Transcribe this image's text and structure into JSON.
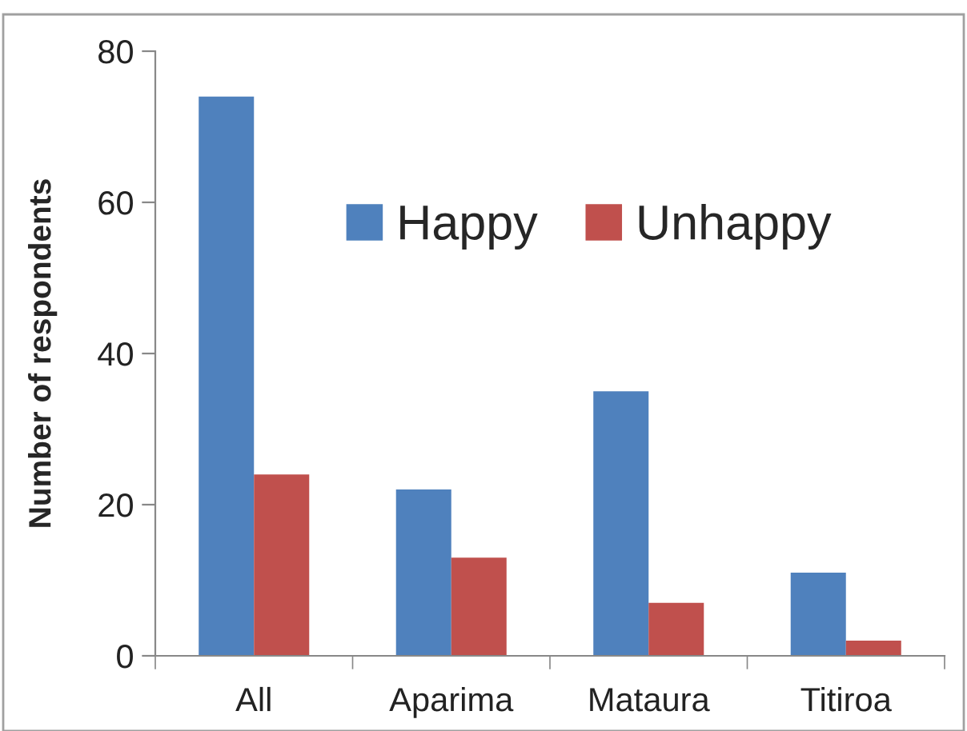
{
  "chart_data": {
    "type": "bar",
    "ylabel": "Number of respondents",
    "categories": [
      "All",
      "Aparima",
      "Mataura",
      "Titiroa"
    ],
    "series": [
      {
        "name": "Happy",
        "color": "#4f81bd",
        "values": [
          74,
          22,
          35,
          11
        ]
      },
      {
        "name": "Unhappy",
        "color": "#c0504d",
        "values": [
          24,
          13,
          7,
          2
        ]
      }
    ],
    "ylim": [
      0,
      80
    ],
    "yticks": [
      0,
      20,
      40,
      60,
      80
    ],
    "grid": false,
    "legend": "top"
  }
}
